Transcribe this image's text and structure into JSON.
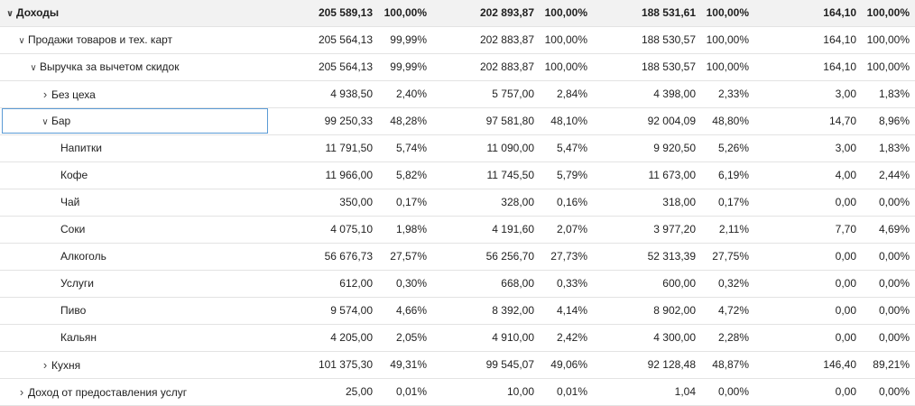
{
  "rows": [
    {
      "label": "Доходы",
      "level": 0,
      "expander": "down",
      "total": true,
      "v": [
        "205 589,13",
        "100,00%",
        "202 893,87",
        "100,00%",
        "188 531,61",
        "100,00%",
        "164,10",
        "100,00%"
      ]
    },
    {
      "label": "Продажи товаров и тех. карт",
      "level": 1,
      "expander": "down",
      "v": [
        "205 564,13",
        "99,99%",
        "202 883,87",
        "100,00%",
        "188 530,57",
        "100,00%",
        "164,10",
        "100,00%"
      ]
    },
    {
      "label": "Выручка за вычетом скидок",
      "level": 2,
      "expander": "down",
      "v": [
        "205 564,13",
        "99,99%",
        "202 883,87",
        "100,00%",
        "188 530,57",
        "100,00%",
        "164,10",
        "100,00%"
      ]
    },
    {
      "label": "Без цеха",
      "level": 3,
      "expander": "right",
      "v": [
        "4 938,50",
        "2,40%",
        "5 757,00",
        "2,84%",
        "4 398,00",
        "2,33%",
        "3,00",
        "1,83%"
      ]
    },
    {
      "label": "Бар",
      "level": 3,
      "expander": "down",
      "selected": true,
      "v": [
        "99 250,33",
        "48,28%",
        "97 581,80",
        "48,10%",
        "92 004,09",
        "48,80%",
        "14,70",
        "8,96%"
      ]
    },
    {
      "label": "Напитки",
      "level": 4,
      "expander": "none",
      "v": [
        "11 791,50",
        "5,74%",
        "11 090,00",
        "5,47%",
        "9 920,50",
        "5,26%",
        "3,00",
        "1,83%"
      ]
    },
    {
      "label": "Кофе",
      "level": 4,
      "expander": "none",
      "v": [
        "11 966,00",
        "5,82%",
        "11 745,50",
        "5,79%",
        "11 673,00",
        "6,19%",
        "4,00",
        "2,44%"
      ]
    },
    {
      "label": "Чай",
      "level": 4,
      "expander": "none",
      "v": [
        "350,00",
        "0,17%",
        "328,00",
        "0,16%",
        "318,00",
        "0,17%",
        "0,00",
        "0,00%"
      ]
    },
    {
      "label": "Соки",
      "level": 4,
      "expander": "none",
      "v": [
        "4 075,10",
        "1,98%",
        "4 191,60",
        "2,07%",
        "3 977,20",
        "2,11%",
        "7,70",
        "4,69%"
      ]
    },
    {
      "label": "Алкоголь",
      "level": 4,
      "expander": "none",
      "v": [
        "56 676,73",
        "27,57%",
        "56 256,70",
        "27,73%",
        "52 313,39",
        "27,75%",
        "0,00",
        "0,00%"
      ]
    },
    {
      "label": "Услуги",
      "level": 4,
      "expander": "none",
      "v": [
        "612,00",
        "0,30%",
        "668,00",
        "0,33%",
        "600,00",
        "0,32%",
        "0,00",
        "0,00%"
      ]
    },
    {
      "label": "Пиво",
      "level": 4,
      "expander": "none",
      "v": [
        "9 574,00",
        "4,66%",
        "8 392,00",
        "4,14%",
        "8 902,00",
        "4,72%",
        "0,00",
        "0,00%"
      ]
    },
    {
      "label": "Кальян",
      "level": 4,
      "expander": "none",
      "v": [
        "4 205,00",
        "2,05%",
        "4 910,00",
        "2,42%",
        "4 300,00",
        "2,28%",
        "0,00",
        "0,00%"
      ]
    },
    {
      "label": "Кухня",
      "level": 3,
      "expander": "right",
      "v": [
        "101 375,30",
        "49,31%",
        "99 545,07",
        "49,06%",
        "92 128,48",
        "48,87%",
        "146,40",
        "89,21%"
      ]
    },
    {
      "label": "Доход от предоставления услуг",
      "level": 1,
      "expander": "right",
      "v": [
        "25,00",
        "0,01%",
        "10,00",
        "0,01%",
        "1,04",
        "0,00%",
        "0,00",
        "0,00%"
      ]
    }
  ]
}
